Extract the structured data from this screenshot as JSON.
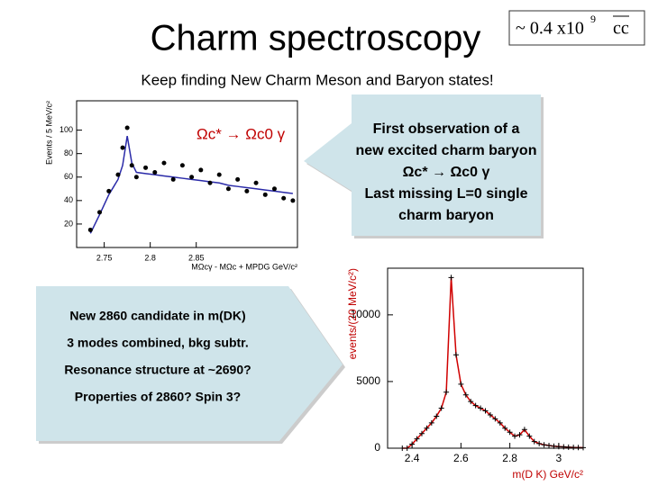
{
  "header": {
    "title": "Charm spectroscopy",
    "box": {
      "prefix": "~ 0.4 x10",
      "exponent": "9",
      "particle": "cc"
    }
  },
  "subtitle": "Keep finding New Charm Meson and Baryon states!",
  "callouts": {
    "right": [
      "First observation of a",
      "new excited charm baryon",
      "Ωc* → Ωc0 γ",
      "Last missing L=0 single",
      "charm baryon"
    ],
    "left": [
      "New 2860 candidate in m(DK)",
      "3 modes combined, bkg subtr.",
      "Resonance structure at ~2690?",
      "Properties of 2860? Spin 3?"
    ]
  },
  "plots": [
    {
      "annotation": "Ωc* → Ωc0 γ",
      "xlabel": "MΩcγ - MΩc + MPDG GeV/c²",
      "ylabel": "Events / 5 MeV/c²",
      "xlim": [
        2.72,
        2.96
      ],
      "ylim": [
        0,
        125
      ],
      "xticks": [
        2.75,
        2.8,
        2.85
      ],
      "yticks": [
        20,
        40,
        60,
        80,
        100
      ],
      "x": [
        2.735,
        2.745,
        2.755,
        2.765,
        2.77,
        2.775,
        2.78,
        2.785,
        2.795,
        2.805,
        2.815,
        2.825,
        2.835,
        2.845,
        2.855,
        2.865,
        2.875,
        2.885,
        2.895,
        2.905,
        2.915,
        2.925,
        2.935,
        2.945,
        2.955
      ],
      "values": [
        15,
        30,
        48,
        62,
        85,
        102,
        70,
        60,
        68,
        64,
        72,
        58,
        70,
        60,
        66,
        55,
        62,
        50,
        58,
        48,
        55,
        45,
        50,
        42,
        40
      ],
      "fit": [
        12,
        28,
        45,
        58,
        70,
        95,
        72,
        64,
        63,
        62,
        61,
        60,
        59,
        58,
        57,
        56,
        55,
        53,
        52,
        51,
        50,
        49,
        48,
        47,
        46
      ]
    },
    {
      "xlabel": "m(D K) GeV/c²",
      "ylabel": "events/(20 MeV/c²)",
      "xlim": [
        2.3,
        3.1
      ],
      "ylim": [
        0,
        13500
      ],
      "xticks": [
        2.4,
        2.6,
        2.8,
        3
      ],
      "yticks": [
        0,
        5000,
        10000
      ],
      "x": [
        2.36,
        2.38,
        2.4,
        2.42,
        2.44,
        2.46,
        2.48,
        2.5,
        2.52,
        2.54,
        2.56,
        2.58,
        2.6,
        2.62,
        2.64,
        2.66,
        2.68,
        2.7,
        2.72,
        2.74,
        2.76,
        2.78,
        2.8,
        2.82,
        2.84,
        2.86,
        2.88,
        2.9,
        2.92,
        2.94,
        2.96,
        2.98,
        3,
        3.02,
        3.04,
        3.06,
        3.08,
        3.1
      ],
      "values": [
        0,
        0,
        300,
        700,
        1100,
        1500,
        1900,
        2400,
        3000,
        4200,
        12800,
        7000,
        4800,
        4000,
        3500,
        3200,
        3000,
        2800,
        2500,
        2200,
        1900,
        1500,
        1200,
        900,
        1000,
        1400,
        900,
        500,
        350,
        250,
        200,
        150,
        120,
        100,
        80,
        60,
        50,
        40
      ]
    }
  ]
}
